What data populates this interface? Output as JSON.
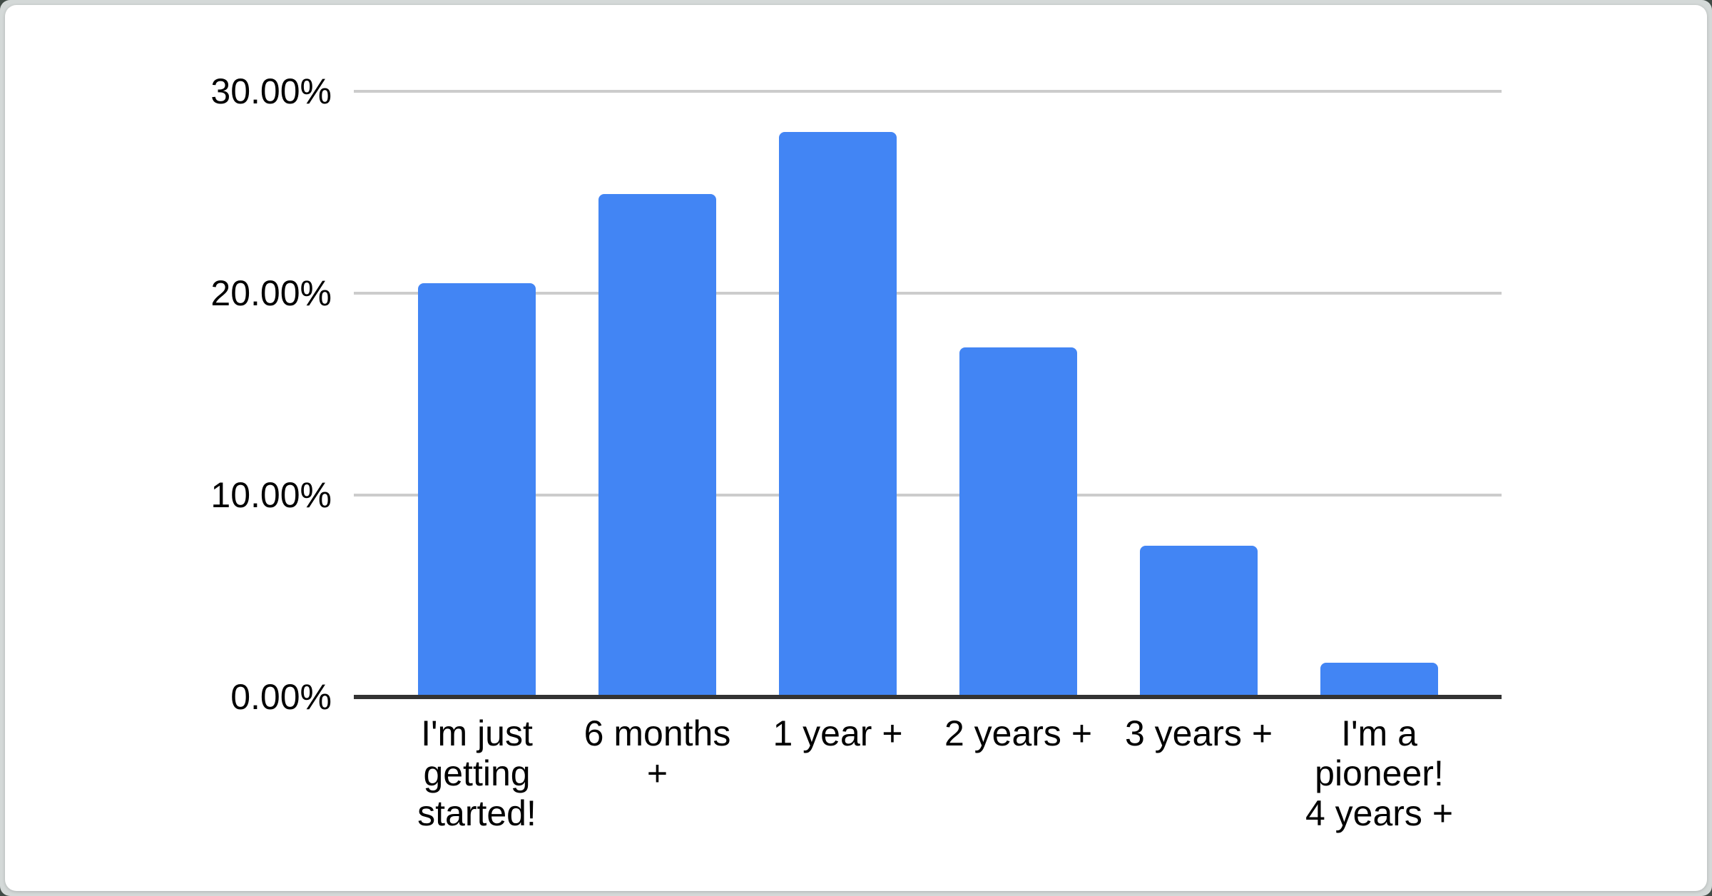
{
  "page": {
    "outer_background_color": "#414b46",
    "matte_color": "#d4d9d8",
    "card_color": "#ffffff"
  },
  "chart_data": {
    "type": "bar",
    "title": "",
    "xlabel": "",
    "ylabel": "",
    "categories": [
      "I'm just getting started!",
      "6 months +",
      "1 year +",
      "2 years +",
      "3 years +",
      "I'm a pioneer! 4 years +"
    ],
    "category_labels_wrapped": [
      "I'm just\ngetting\nstarted!",
      "6 months\n+",
      "1 year +",
      "2 years +",
      "3 years +",
      "I'm a\npioneer!\n4 years +"
    ],
    "values": [
      20.5,
      24.9,
      28.0,
      17.3,
      7.5,
      1.7
    ],
    "value_unit": "%",
    "ylim": [
      0,
      30
    ],
    "yticks": [
      {
        "value": 30,
        "label": "30.00%"
      },
      {
        "value": 20,
        "label": "20.00%"
      },
      {
        "value": 10,
        "label": "10.00%"
      },
      {
        "value": 0,
        "label": "0.00%"
      }
    ],
    "grid": true,
    "legend": "none",
    "bar_color": "#4285F4",
    "gridline_color": "#cccccc",
    "axis_line_color": "#333333",
    "text_color": "#000000"
  }
}
